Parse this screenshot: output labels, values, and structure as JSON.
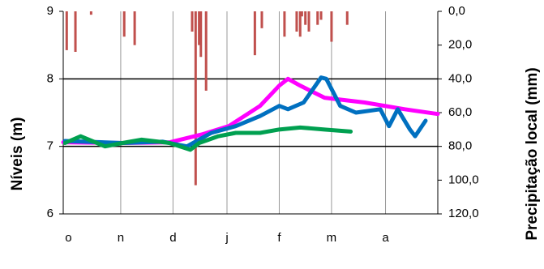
{
  "chart_data": {
    "type": "line",
    "y_label": "Níveis (m)",
    "y2_label": "Precipitação  local (mm)",
    "xlim": [
      0,
      215
    ],
    "xticks": [
      {
        "value": 3,
        "label": "o"
      },
      {
        "value": 33,
        "label": "n"
      },
      {
        "value": 63,
        "label": "d"
      },
      {
        "value": 94,
        "label": "j"
      },
      {
        "value": 124,
        "label": "f"
      },
      {
        "value": 154,
        "label": "m"
      },
      {
        "value": 185,
        "label": "a"
      }
    ],
    "ylim": [
      6,
      9
    ],
    "yticks": [
      6,
      7,
      8,
      9
    ],
    "y2lim": [
      120,
      0
    ],
    "y2ticks": [
      {
        "value": 0,
        "label": "0,0"
      },
      {
        "value": 20,
        "label": "20,0"
      },
      {
        "value": 40,
        "label": "40,0"
      },
      {
        "value": 60,
        "label": "60,0"
      },
      {
        "value": 80,
        "label": "80,0"
      },
      {
        "value": 100,
        "label": "100,0"
      },
      {
        "value": 120,
        "label": "120,0"
      }
    ],
    "grid": true,
    "series": [
      {
        "type": "bar",
        "axis": "y2",
        "color": "#c0504d",
        "x": [
          2,
          7,
          16,
          35,
          41,
          74,
          76,
          78,
          79,
          82,
          110,
          114,
          127,
          134,
          136,
          137,
          139,
          141,
          146,
          148,
          154,
          163
        ],
        "values": [
          23,
          24,
          2,
          15,
          20,
          12,
          103,
          20,
          27,
          47,
          26,
          10,
          15,
          12,
          15,
          3,
          8,
          12,
          8,
          5,
          18,
          8
        ]
      },
      {
        "type": "line",
        "color": "#ff00ff",
        "x": [
          0,
          34,
          61,
          80,
          95,
          113,
          124,
          129,
          136,
          150,
          173,
          196,
          215
        ],
        "values": [
          7.06,
          7.05,
          7.06,
          7.18,
          7.3,
          7.6,
          7.9,
          8.0,
          7.9,
          7.72,
          7.65,
          7.55,
          7.48
        ]
      },
      {
        "type": "line",
        "color": "#0070c0",
        "x": [
          1,
          34,
          57,
          71,
          85,
          99,
          113,
          124,
          129,
          138,
          148,
          151,
          159,
          168,
          182,
          187,
          192,
          199,
          202,
          208
        ],
        "values": [
          7.08,
          7.05,
          7.07,
          7.0,
          7.2,
          7.3,
          7.45,
          7.6,
          7.55,
          7.65,
          8.02,
          8.0,
          7.6,
          7.5,
          7.55,
          7.3,
          7.55,
          7.25,
          7.15,
          7.38
        ]
      },
      {
        "type": "line",
        "color": "#00a050",
        "x": [
          1,
          10,
          24,
          34,
          45,
          61,
          73,
          78,
          89,
          99,
          113,
          124,
          136,
          150,
          165
        ],
        "values": [
          7.05,
          7.15,
          7.0,
          7.05,
          7.1,
          7.05,
          6.95,
          7.05,
          7.15,
          7.2,
          7.2,
          7.25,
          7.28,
          7.25,
          7.22
        ]
      }
    ]
  }
}
